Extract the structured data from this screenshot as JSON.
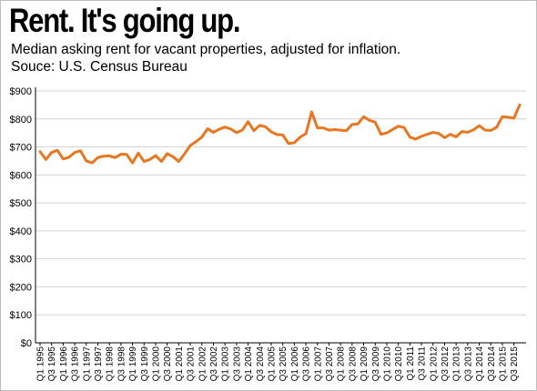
{
  "header": {
    "title": "Rent. It's going up.",
    "subtitle": "Median asking rent for vacant properties, adjusted for inflation.",
    "source": "Souce: U.S. Census Bureau"
  },
  "colors": {
    "line": "#E87722",
    "grid": "#d4d4d4",
    "axis": "#000000",
    "border": "#bdbdbd"
  },
  "chart_data": {
    "type": "line",
    "title": "Rent. It's going up.",
    "subtitle": "Median asking rent for vacant properties, adjusted for inflation.",
    "xlabel": "",
    "ylabel": "",
    "ylim": [
      0,
      900
    ],
    "grid": "horizontal",
    "legend": "none",
    "y_ticks": [
      "$0",
      "$100",
      "$200",
      "$300",
      "$400",
      "$500",
      "$600",
      "$700",
      "$800",
      "$900"
    ],
    "x_tick_labels": [
      "Q1 1995",
      "Q3 1995",
      "Q1 1996",
      "Q3 1996",
      "Q1 1997",
      "Q3 1997",
      "Q1 1998",
      "Q3 1998",
      "Q1 1999",
      "Q3 1999",
      "Q1 2000",
      "Q3 2000",
      "Q1 2001",
      "Q3 2001",
      "Q1 2002",
      "Q3 2002",
      "Q1 2003",
      "Q3 2003",
      "Q1 2004",
      "Q3 2004",
      "Q1 2005",
      "Q3 2005",
      "Q1 2006",
      "Q3 2006",
      "Q1 2007",
      "Q3 2007",
      "Q1 2008",
      "Q3 2008",
      "Q1 2009",
      "Q3 2009",
      "Q1 2010",
      "Q3 2010",
      "Q1 2011",
      "Q3 2011",
      "Q1 2012",
      "Q3 2012",
      "Q1 2013",
      "Q3 2013",
      "Q1 2014",
      "Q3 2014",
      "Q1 2015",
      "Q3 2015"
    ],
    "series": [
      {
        "x": [
          "Q1 1995",
          "Q2 1995",
          "Q3 1995",
          "Q4 1995",
          "Q1 1996",
          "Q2 1996",
          "Q3 1996",
          "Q4 1996",
          "Q1 1997",
          "Q2 1997",
          "Q3 1997",
          "Q4 1997",
          "Q1 1998",
          "Q2 1998",
          "Q3 1998",
          "Q4 1998",
          "Q1 1999",
          "Q2 1999",
          "Q3 1999",
          "Q4 1999",
          "Q1 2000",
          "Q2 2000",
          "Q3 2000",
          "Q4 2000",
          "Q1 2001",
          "Q2 2001",
          "Q3 2001",
          "Q4 2001",
          "Q1 2002",
          "Q2 2002",
          "Q3 2002",
          "Q4 2002",
          "Q1 2003",
          "Q2 2003",
          "Q3 2003",
          "Q4 2003",
          "Q1 2004",
          "Q2 2004",
          "Q3 2004",
          "Q4 2004",
          "Q1 2005",
          "Q2 2005",
          "Q3 2005",
          "Q4 2005",
          "Q1 2006",
          "Q2 2006",
          "Q3 2006",
          "Q4 2006",
          "Q1 2007",
          "Q2 2007",
          "Q3 2007",
          "Q4 2007",
          "Q1 2008",
          "Q2 2008",
          "Q3 2008",
          "Q4 2008",
          "Q1 2009",
          "Q2 2009",
          "Q3 2009",
          "Q4 2009",
          "Q1 2010",
          "Q2 2010",
          "Q3 2010",
          "Q4 2010",
          "Q1 2011",
          "Q2 2011",
          "Q3 2011",
          "Q4 2011",
          "Q1 2012",
          "Q2 2012",
          "Q3 2012",
          "Q4 2012",
          "Q1 2013",
          "Q2 2013",
          "Q3 2013",
          "Q4 2013",
          "Q1 2014",
          "Q2 2014",
          "Q3 2014",
          "Q4 2014",
          "Q1 2015",
          "Q2 2015",
          "Q3 2015",
          "Q4 2015"
        ],
        "values": [
          683,
          655,
          680,
          688,
          657,
          663,
          680,
          686,
          650,
          643,
          662,
          667,
          668,
          662,
          674,
          673,
          643,
          678,
          648,
          655,
          669,
          648,
          676,
          665,
          648,
          675,
          705,
          719,
          735,
          765,
          752,
          763,
          771,
          764,
          751,
          760,
          790,
          758,
          777,
          772,
          754,
          744,
          743,
          712,
          715,
          735,
          747,
          825,
          768,
          768,
          760,
          762,
          760,
          758,
          780,
          782,
          808,
          795,
          788,
          745,
          750,
          762,
          774,
          769,
          735,
          728,
          738,
          745,
          752,
          748,
          733,
          745,
          736,
          755,
          752,
          761,
          776,
          760,
          759,
          770,
          808,
          806,
          803,
          850
        ]
      }
    ]
  }
}
